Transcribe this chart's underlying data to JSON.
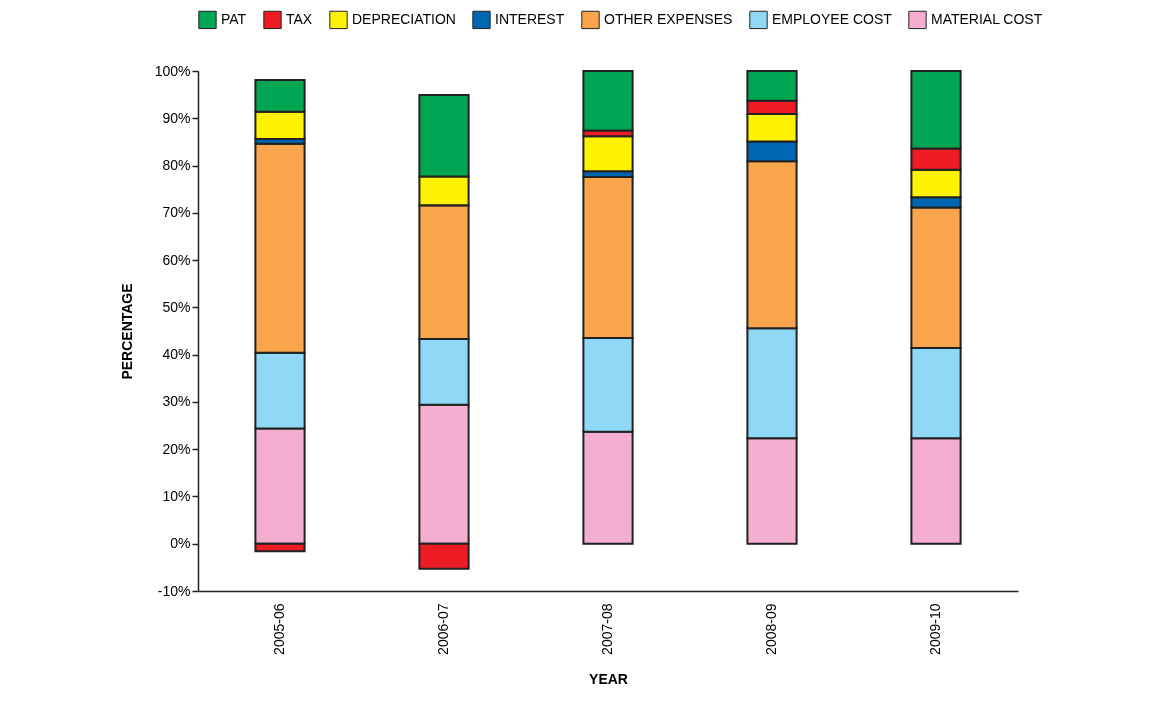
{
  "chart_data": {
    "type": "bar",
    "stacked": true,
    "xlabel": "YEAR",
    "ylabel": "PERCENTAGE",
    "categories": [
      "2005-06",
      "2006-07",
      "2007-08",
      "2008-09",
      "2009-10"
    ],
    "series": [
      {
        "name": "MATERIAL COST",
        "color": "#f3aed0",
        "values": [
          24.4,
          29.4,
          23.7,
          22.3,
          22.3
        ]
      },
      {
        "name": "EMPLOYEE COST",
        "color": "#8fd8f6",
        "values": [
          16.0,
          13.9,
          19.8,
          23.3,
          19.1
        ]
      },
      {
        "name": "OTHER EXPENSES",
        "color": "#f8a54b",
        "values": [
          44.2,
          28.3,
          34.1,
          35.3,
          29.7
        ]
      },
      {
        "name": "INTEREST",
        "color": "#0066b3",
        "values": [
          1.0,
          0,
          1.2,
          4.2,
          2.2
        ]
      },
      {
        "name": "DEPRECIATION",
        "color": "#fff200",
        "values": [
          5.8,
          6.1,
          7.4,
          5.8,
          5.8
        ]
      },
      {
        "name": "TAX",
        "color": "#ed1c24",
        "values": [
          -1.6,
          -5.3,
          1.2,
          2.8,
          4.5
        ]
      },
      {
        "name": "PAT",
        "color": "#00a651",
        "values": [
          6.7,
          17.2,
          12.6,
          6.3,
          16.4
        ]
      }
    ],
    "ylim": [
      -10,
      100
    ],
    "yticks": [
      {
        "value": -10,
        "label": "-10%"
      },
      {
        "value": 0,
        "label": "0%"
      },
      {
        "value": 10,
        "label": "10%"
      },
      {
        "value": 20,
        "label": "20%"
      },
      {
        "value": 30,
        "label": "30%"
      },
      {
        "value": 40,
        "label": "40%"
      },
      {
        "value": 50,
        "label": "50%"
      },
      {
        "value": 60,
        "label": "60%"
      },
      {
        "value": 70,
        "label": "70%"
      },
      {
        "value": 80,
        "label": "80%"
      },
      {
        "value": 90,
        "label": "90%"
      },
      {
        "value": 100,
        "label": "100%"
      }
    ],
    "grid": false,
    "legend": "top"
  }
}
